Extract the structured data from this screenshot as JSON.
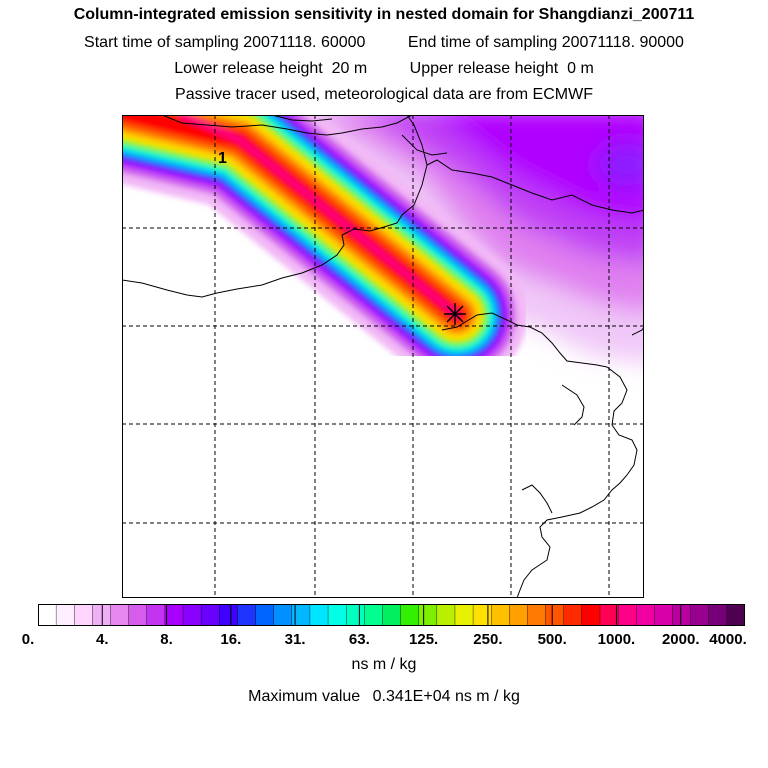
{
  "header": {
    "title": "Column-integrated emission sensitivity in nested domain for Shangdianzi_200711",
    "start_label": "Start time of sampling",
    "start_value": "20071118. 60000",
    "end_label": "End time of sampling",
    "end_value": "20071118. 90000",
    "lower_label": "Lower release height",
    "lower_value": "20 m",
    "upper_label": "Upper release height",
    "upper_value": "0 m",
    "note": "Passive tracer used, meteorological data are from ECMWF"
  },
  "map": {
    "plume_label": "1",
    "colors": {
      "frame": "#000000",
      "gridlines": "#000000",
      "coastline": "#000000",
      "background_field": "#b400ff",
      "plume_core": "#ff0000"
    },
    "receptor_marker": "asterisk-icon"
  },
  "colorbar": {
    "colors": [
      "#ffffff",
      "#ffeeff",
      "#ffd4ff",
      "#f0b0f5",
      "#e688f0",
      "#d55cec",
      "#c433f0",
      "#a800ff",
      "#8a00ff",
      "#6a00ff",
      "#4000ff",
      "#1e35ff",
      "#0064ff",
      "#0090ff",
      "#00b8ff",
      "#00e5ff",
      "#00ffe6",
      "#00ffc0",
      "#00ff90",
      "#00f060",
      "#33f000",
      "#7cf000",
      "#b8f000",
      "#e6f000",
      "#ffe000",
      "#ffc000",
      "#ffa000",
      "#ff7a00",
      "#ff5500",
      "#ff2a00",
      "#ff0000",
      "#ff0055",
      "#ff0088",
      "#f000a0",
      "#d800a8",
      "#b800a0",
      "#980090",
      "#760078",
      "#500050"
    ],
    "tick_labels": [
      "0.",
      "4.",
      "8.",
      "16.",
      "31.",
      "63.",
      "125.",
      "250.",
      "500.",
      "1000.",
      "2000.",
      "4000."
    ],
    "unit": "ns m / kg"
  },
  "footer": {
    "max_label": "Maximum value",
    "max_value": "0.341E+04 ns m / kg"
  }
}
